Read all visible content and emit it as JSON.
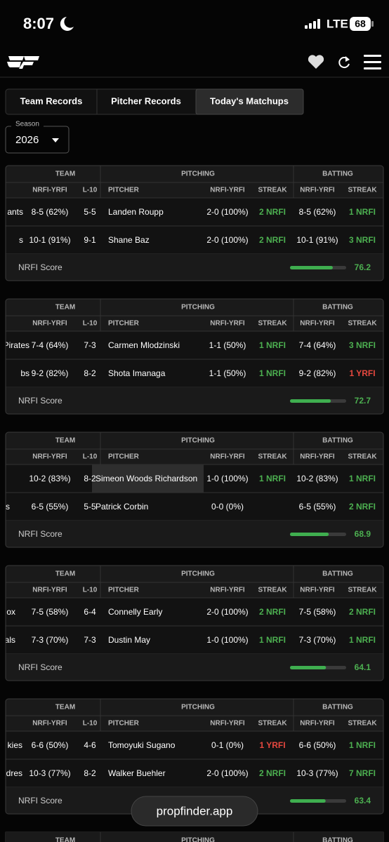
{
  "status_bar": {
    "time": "8:07",
    "network": "LTE",
    "battery": "68"
  },
  "tabs": [
    "Team Records",
    "Pitcher Records",
    "Today's Matchups"
  ],
  "season": {
    "label": "Season",
    "value": "2026"
  },
  "table_header": {
    "groups": [
      "TEAM",
      "PITCHING",
      "BATTING"
    ],
    "columns": [
      "NRFI-YRFI",
      "L-10",
      "PITCHER",
      "NRFI-YRFI",
      "STREAK",
      "NRFI-YRFI",
      "STREAK"
    ]
  },
  "score_label": "NRFI Score",
  "score_range": [
    0,
    100
  ],
  "cards": [
    {
      "rows": [
        [
          "ants",
          "8-5 (62%)",
          "5-5",
          "Landen Roupp",
          "2-0 (100%)",
          "2 NRFI",
          "8-5 (62%)",
          "1 NRFI"
        ],
        [
          "s",
          "10-1 (91%)",
          "9-1",
          "Shane Baz",
          "2-0 (100%)",
          "2 NRFI",
          "10-1 (91%)",
          "3 NRFI"
        ]
      ],
      "score": 76.2
    },
    {
      "rows": [
        [
          "Pirates",
          "7-4 (64%)",
          "7-3",
          "Carmen Mlodzinski",
          "1-1 (50%)",
          "1 NRFI",
          "7-4 (64%)",
          "3 NRFI"
        ],
        [
          "bs",
          "9-2 (82%)",
          "8-2",
          "Shota Imanaga",
          "1-1 (50%)",
          "1 NRFI",
          "9-2 (82%)",
          {
            "text": "1 YRFI",
            "color": "#e5483f"
          }
        ]
      ],
      "score": 72.7
    },
    {
      "rows": [
        [
          null,
          "10-2 (83%)",
          "8-2",
          "Simeon Woods Richardson",
          "1-0 (100%)",
          "1 NRFI",
          "10-2 (83%)",
          "1 NRFI"
        ],
        [
          "s",
          "6-5 (55%)",
          "5-5",
          "Patrick Corbin",
          "0-0 (0%)",
          null,
          "6-5 (55%)",
          "2 NRFI"
        ]
      ],
      "score": 68.9
    },
    {
      "rows": [
        [
          "ox",
          "7-5 (58%)",
          "6-4",
          "Connelly Early",
          "2-0 (100%)",
          "2 NRFI",
          "7-5 (58%)",
          "2 NRFI"
        ],
        [
          "dinals",
          "7-3 (70%)",
          "7-3",
          "Dustin May",
          "1-0 (100%)",
          "1 NRFI",
          "7-3 (70%)",
          "1 NRFI"
        ]
      ],
      "score": 64.1
    },
    {
      "rows": [
        [
          "kies",
          "6-6 (50%)",
          "4-6",
          "Tomoyuki Sugano",
          "0-1 (0%)",
          {
            "text": "1 YRFI",
            "color": "#e5483f"
          },
          "6-6 (50%)",
          "1 NRFI"
        ],
        [
          "dres",
          "10-3 (77%)",
          "8-2",
          "Walker Buehler",
          "2-0 (100%)",
          "2 NRFI",
          "10-3 (77%)",
          "7 NRFI"
        ]
      ],
      "score": 63.4
    }
  ],
  "footer_pill": "propfinder.app"
}
